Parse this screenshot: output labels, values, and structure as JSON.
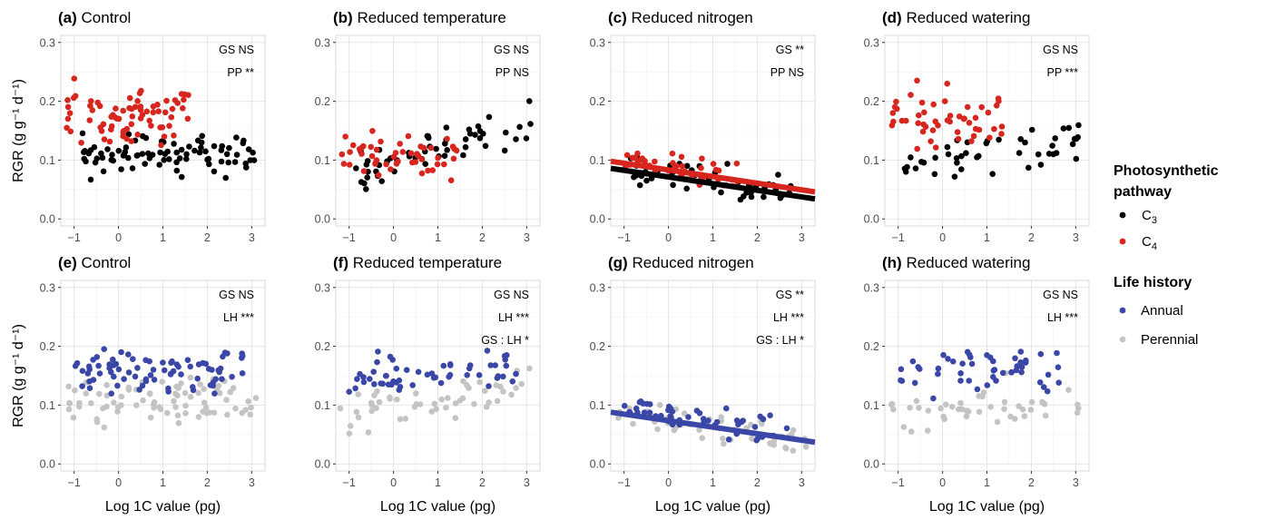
{
  "legend": {
    "pathway": {
      "title": [
        "Photosynthetic",
        "pathway"
      ],
      "items": [
        {
          "label": "C",
          "sub": "3",
          "color": "#000000"
        },
        {
          "label": "C",
          "sub": "4",
          "color": "#d7261e"
        }
      ]
    },
    "lifehistory": {
      "title": "Life history",
      "items": [
        {
          "label": "Annual",
          "color": "#3b47a6"
        },
        {
          "label": "Perennial",
          "color": "#c4c4c4"
        }
      ]
    }
  },
  "axes": {
    "ylabel": "RGR (g g⁻¹ d⁻¹)",
    "xlabel": "Log 1C value (pg)",
    "xlim": [
      -1.3,
      3.3
    ],
    "ylim": [
      -0.012,
      0.312
    ],
    "xticks": [
      -1,
      0,
      1,
      2,
      3
    ],
    "yticks": [
      "0.0",
      "0.1",
      "0.2",
      "0.3"
    ]
  },
  "chart_data": [
    {
      "type": "scatter",
      "panel": "a",
      "tag": "(a)",
      "title": "Control",
      "grouping": "pathway",
      "annotations": [
        "GS NS",
        "PP **"
      ],
      "trend_lines": [],
      "seed": 11,
      "n": [
        85,
        75
      ]
    },
    {
      "type": "scatter",
      "panel": "b",
      "tag": "(b)",
      "title": "Reduced temperature",
      "grouping": "pathway",
      "annotations": [
        "GS NS",
        "PP NS"
      ],
      "trend_lines": [],
      "seed": 23,
      "n": [
        55,
        50
      ]
    },
    {
      "type": "scatter",
      "panel": "c",
      "tag": "(c)",
      "title": "Reduced nitrogen",
      "grouping": "pathway",
      "annotations": [
        "GS **",
        "PP NS"
      ],
      "trend_lines": [
        {
          "group": "C4",
          "x": [
            -1.3,
            3.3
          ],
          "y": [
            0.098,
            0.046
          ]
        },
        {
          "group": "C3",
          "x": [
            -1.3,
            3.3
          ],
          "y": [
            0.086,
            0.034
          ]
        }
      ],
      "seed": 37,
      "n": [
        55,
        45
      ]
    },
    {
      "type": "scatter",
      "panel": "d",
      "tag": "(d)",
      "title": "Reduced watering",
      "grouping": "pathway",
      "annotations": [
        "GS NS",
        "PP ***"
      ],
      "trend_lines": [],
      "seed": 41,
      "n": [
        45,
        50
      ]
    },
    {
      "type": "scatter",
      "panel": "e",
      "tag": "(e)",
      "title": "Control",
      "grouping": "lifehistory",
      "annotations": [
        "GS NS",
        "LH ***"
      ],
      "trend_lines": [],
      "seed": 53,
      "n": [
        80,
        80
      ]
    },
    {
      "type": "scatter",
      "panel": "f",
      "tag": "(f)",
      "title": "Reduced temperature",
      "grouping": "lifehistory",
      "annotations": [
        "GS NS",
        "LH ***",
        "GS : LH *"
      ],
      "trend_lines": [],
      "seed": 67,
      "n": [
        55,
        50
      ]
    },
    {
      "type": "scatter",
      "panel": "g",
      "tag": "(g)",
      "title": "Reduced nitrogen",
      "grouping": "lifehistory",
      "annotations": [
        "GS **",
        "LH ***",
        "GS : LH *"
      ],
      "trend_lines": [
        {
          "group": "Annual",
          "x": [
            -1.3,
            3.3
          ],
          "y": [
            0.088,
            0.037
          ]
        }
      ],
      "seed": 79,
      "n": [
        50,
        50
      ]
    },
    {
      "type": "scatter",
      "panel": "h",
      "tag": "(h)",
      "title": "Reduced watering",
      "grouping": "lifehistory",
      "annotations": [
        "GS NS",
        "LH ***"
      ],
      "trend_lines": [],
      "seed": 83,
      "n": [
        50,
        45
      ]
    }
  ]
}
